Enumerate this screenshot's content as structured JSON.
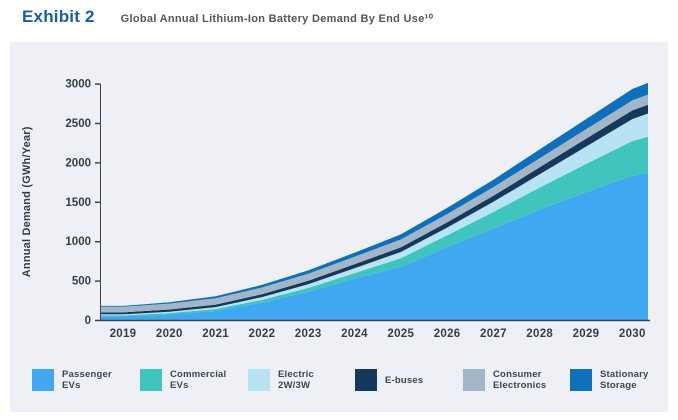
{
  "header": {
    "exhibit_label": "Exhibit 2",
    "title": "Global Annual Lithium-Ion Battery Demand By End Use¹⁰"
  },
  "colors": {
    "exhibit_label": "#1A5CA8",
    "title_text": "#55565B",
    "panel_bg": "#EEF0F5",
    "axis": "#3C4650",
    "tick_text": "#323F4A"
  },
  "chart_data": {
    "type": "area",
    "stacked": true,
    "title": "Global Annual Lithium-Ion Battery Demand By End Use",
    "ylabel": "Annual Demand (GWh/Year)",
    "xlabel": "",
    "x": [
      2019,
      2020,
      2021,
      2022,
      2023,
      2024,
      2025,
      2026,
      2027,
      2028,
      2029,
      2030
    ],
    "ylim": [
      0,
      3000
    ],
    "yticks": [
      0,
      500,
      1000,
      1500,
      2000,
      2500,
      3000
    ],
    "grid": false,
    "legend_position": "bottom",
    "series": [
      {
        "name": "Passenger EVs",
        "legend_lines": [
          "Passenger",
          "EVs"
        ],
        "color": "#3FA8F0",
        "values": [
          47,
          70,
          114,
          220,
          356,
          525,
          673,
          923,
          1160,
          1400,
          1620,
          1830
        ]
      },
      {
        "name": "Commercial EVs",
        "legend_lines": [
          "Commercial",
          "EVs"
        ],
        "color": "#3FC4BE",
        "values": [
          13,
          17,
          25,
          35,
          50,
          70,
          110,
          150,
          210,
          280,
          360,
          440
        ]
      },
      {
        "name": "Electric 2W/3W",
        "legend_lines": [
          "Electric",
          "2W/3W"
        ],
        "color": "#B7E3F2",
        "values": [
          12,
          18,
          25,
          35,
          48,
          62,
          80,
          100,
          130,
          170,
          220,
          280
        ]
      },
      {
        "name": "E-buses",
        "legend_lines": [
          "E-buses"
        ],
        "color": "#14395C",
        "values": [
          25,
          28,
          32,
          38,
          44,
          50,
          58,
          66,
          76,
          88,
          100,
          110
        ]
      },
      {
        "name": "Consumer Electronics",
        "legend_lines": [
          "Consumer",
          "Electronics"
        ],
        "color": "#A2B6C8",
        "values": [
          70,
          75,
          80,
          85,
          90,
          95,
          100,
          105,
          110,
          115,
          120,
          127
        ]
      },
      {
        "name": "Stationary Storage",
        "legend_lines": [
          "Stationary",
          "Storage"
        ],
        "color": "#0E70BC",
        "values": [
          12,
          18,
          25,
          33,
          42,
          52,
          65,
          78,
          95,
          112,
          130,
          145
        ]
      }
    ]
  }
}
